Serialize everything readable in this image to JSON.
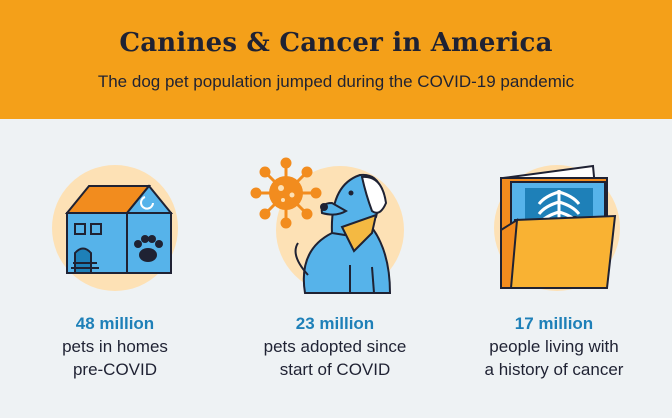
{
  "header": {
    "title": "Canines & Cancer in America",
    "subtitle": "The dog pet population jumped during the COVID-19 pandemic"
  },
  "stats": [
    {
      "number": "48 million",
      "line1": "pets in homes",
      "line2": "pre-COVID",
      "icon": "house-with-paw-icon"
    },
    {
      "number": "23 million",
      "line1": "pets adopted since",
      "line2": "start of COVID",
      "icon": "dog-with-virus-icon"
    },
    {
      "number": "17 million",
      "line1": "people living with",
      "line2": "a history of cancer",
      "icon": "xray-folder-icon"
    }
  ],
  "colors": {
    "header_bg": "#f4a019",
    "page_bg": "#eef2f4",
    "title_text": "#1f2233",
    "stat_number": "#1e80b8",
    "circle_bg": "#fde1b5",
    "icon_blue": "#56b3ea",
    "icon_orange": "#f28c1e"
  }
}
